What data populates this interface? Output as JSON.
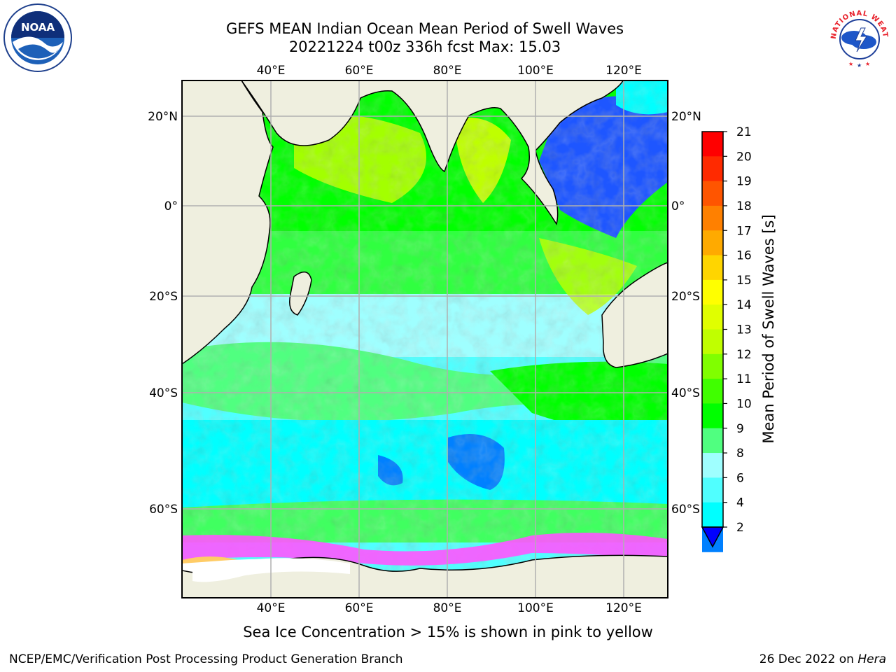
{
  "header": {
    "title_line1": "GEFS MEAN Indian Ocean Mean Period of Swell Waves",
    "title_line2": "20221224 t00z 336h fcst   Max: 15.03"
  },
  "logos": {
    "left": {
      "name": "noaa-logo",
      "text": "NOAA"
    },
    "right": {
      "name": "nws-logo",
      "text": "NATIONAL WEATHER SERVICE"
    }
  },
  "map": {
    "lon_labels": [
      "40°E",
      "60°E",
      "80°E",
      "100°E",
      "120°E"
    ],
    "lat_labels": [
      "20°N",
      "0°",
      "20°S",
      "40°S",
      "60°S"
    ],
    "land_color": "#efefdf",
    "gridline_color": "#b0b0b0"
  },
  "colorbar": {
    "label": "Mean Period of Swell Waves [s]",
    "ticks": [
      "21",
      "20",
      "19",
      "18",
      "17",
      "16",
      "15",
      "14",
      "13",
      "12",
      "11",
      "10",
      "9",
      "8",
      "6",
      "4",
      "2"
    ],
    "colors": [
      "#ff0000",
      "#ff2a00",
      "#ff5500",
      "#ff8000",
      "#ffaa00",
      "#ffd500",
      "#ffff00",
      "#e0ff00",
      "#c0ff00",
      "#80ff00",
      "#40ff00",
      "#00ff00",
      "#50ff80",
      "#9fffff",
      "#50ffff",
      "#00ffff",
      "#0080ff"
    ],
    "extend_color": "#0000ff"
  },
  "footer": {
    "note": "Sea Ice Concentration > 15% is shown in pink to yellow",
    "left": "NCEP/EMC/Verification Post Processing Product Generation Branch",
    "date": "26 Dec 2022 on",
    "machine": "Hera"
  }
}
